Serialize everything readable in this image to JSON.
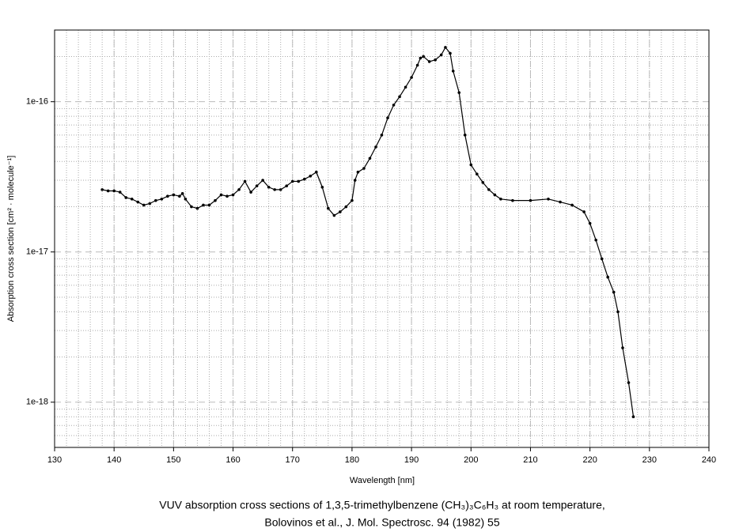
{
  "chart_data": {
    "type": "line",
    "title": [
      "VUV absorption cross sections of 1,3,5-trimethylbenzene (CH₃)₃C₆H₃ at room temperature,",
      "Bolovinos et al., J. Mol. Spectrosc. 94 (1982) 55"
    ],
    "xlabel": "Wavelength [nm]",
    "ylabel": "Absorption cross section [cm² · molecule⁻¹]",
    "xlim": [
      130,
      240
    ],
    "xticks": [
      130,
      140,
      150,
      160,
      170,
      180,
      190,
      200,
      210,
      220,
      230,
      240
    ],
    "ylim": [
      5e-19,
      3e-16
    ],
    "yticks": [
      {
        "value": 1e-18,
        "label": "1e-18"
      },
      {
        "value": 1e-17,
        "label": "1e-17"
      },
      {
        "value": 1e-16,
        "label": "1e-16"
      }
    ],
    "log_y": true,
    "grid": true,
    "minor_grid": true,
    "color": "#000000",
    "x": [
      138,
      139,
      140,
      141,
      142,
      143,
      144,
      145,
      146,
      147,
      148,
      149,
      150,
      151,
      151.5,
      152,
      153,
      154,
      155,
      156,
      157,
      158,
      159,
      160,
      161,
      162,
      163,
      164,
      165,
      166,
      167,
      168,
      169,
      170,
      171,
      172,
      173,
      174,
      175,
      176,
      177,
      178,
      179,
      180,
      180.5,
      181,
      182,
      183,
      184,
      185,
      186,
      187,
      188,
      189,
      190,
      191,
      191.5,
      192,
      193,
      194,
      195,
      195.7,
      196.5,
      197,
      198,
      199,
      200,
      201,
      202,
      203,
      204,
      205,
      207,
      210,
      213,
      215,
      217,
      219,
      220,
      221,
      222,
      223,
      224,
      224.7,
      225.5,
      226.5,
      227.3
    ],
    "values": [
      2.6e-17,
      2.55e-17,
      2.55e-17,
      2.5e-17,
      2.3e-17,
      2.25e-17,
      2.15e-17,
      2.05e-17,
      2.1e-17,
      2.2e-17,
      2.25e-17,
      2.35e-17,
      2.4e-17,
      2.35e-17,
      2.45e-17,
      2.25e-17,
      2e-17,
      1.95e-17,
      2.05e-17,
      2.05e-17,
      2.2e-17,
      2.4e-17,
      2.35e-17,
      2.4e-17,
      2.6e-17,
      2.95e-17,
      2.5e-17,
      2.75e-17,
      3e-17,
      2.7e-17,
      2.6e-17,
      2.6e-17,
      2.75e-17,
      2.95e-17,
      2.95e-17,
      3.05e-17,
      3.2e-17,
      3.4e-17,
      2.7e-17,
      1.95e-17,
      1.75e-17,
      1.85e-17,
      2e-17,
      2.2e-17,
      3e-17,
      3.4e-17,
      3.6e-17,
      4.2e-17,
      5e-17,
      6e-17,
      7.8e-17,
      9.5e-17,
      1.08e-16,
      1.25e-16,
      1.45e-16,
      1.75e-16,
      1.95e-16,
      2e-16,
      1.85e-16,
      1.9e-16,
      2.05e-16,
      2.3e-16,
      2.1e-16,
      1.6e-16,
      1.15e-16,
      6e-17,
      3.8e-17,
      3.3e-17,
      2.9e-17,
      2.6e-17,
      2.4e-17,
      2.25e-17,
      2.2e-17,
      2.2e-17,
      2.25e-17,
      2.15e-17,
      2.05e-17,
      1.85e-17,
      1.55e-17,
      1.2e-17,
      9e-18,
      6.8e-18,
      5.4e-18,
      4e-18,
      2.3e-18,
      1.35e-18,
      8e-19
    ]
  }
}
